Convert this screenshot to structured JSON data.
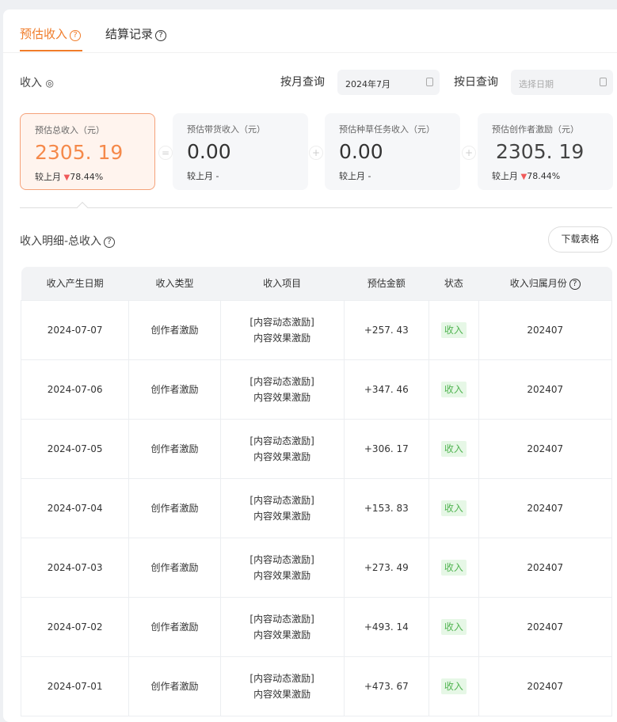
{
  "tabs": [
    {
      "label": "预估收入",
      "active": true
    },
    {
      "label": "结算记录",
      "active": false
    }
  ],
  "accent": "#f07c2a",
  "income": {
    "label": "收入",
    "icon": "eye-icon"
  },
  "filters": {
    "month_label": "按月查询",
    "month_value": "2024年7月",
    "day_label": "按日查询",
    "day_placeholder": "选择日期"
  },
  "stats": [
    {
      "label": "预估总收入（元）",
      "value": "2305. 19",
      "compare_label": "较上月",
      "compare": "78.44%",
      "trend": "down"
    },
    {
      "label": "预估带货收入（元）",
      "value": "0.00",
      "compare_label": "较上月",
      "compare": "-"
    },
    {
      "label": "预估种草任务收入（元）",
      "value": "0.00",
      "compare_label": "较上月",
      "compare": "-"
    },
    {
      "label": "预估创作者激励（元）",
      "value": "2305. 19",
      "compare_label": "较上月",
      "compare": "78.44%",
      "trend": "down"
    }
  ],
  "operators": [
    "=",
    "+",
    "+"
  ],
  "detail": {
    "title": "收入明细-总收入",
    "download": "下载表格"
  },
  "table": {
    "headers": [
      "收入产生日期",
      "收入类型",
      "收入项目",
      "预估金额",
      "状态",
      "收入归属月份"
    ],
    "rows": [
      {
        "date": "2024-07-07",
        "type": "创作者激励",
        "item1": "[内容动态激励]",
        "item2": "内容效果激励",
        "amount": "+257. 43",
        "status": "收入",
        "month": "202407"
      },
      {
        "date": "2024-07-06",
        "type": "创作者激励",
        "item1": "[内容动态激励]",
        "item2": "内容效果激励",
        "amount": "+347. 46",
        "status": "收入",
        "month": "202407"
      },
      {
        "date": "2024-07-05",
        "type": "创作者激励",
        "item1": "[内容动态激励]",
        "item2": "内容效果激励",
        "amount": "+306. 17",
        "status": "收入",
        "month": "202407"
      },
      {
        "date": "2024-07-04",
        "type": "创作者激励",
        "item1": "[内容动态激励]",
        "item2": "内容效果激励",
        "amount": "+153. 83",
        "status": "收入",
        "month": "202407"
      },
      {
        "date": "2024-07-03",
        "type": "创作者激励",
        "item1": "[内容动态激励]",
        "item2": "内容效果激励",
        "amount": "+273. 49",
        "status": "收入",
        "month": "202407"
      },
      {
        "date": "2024-07-02",
        "type": "创作者激励",
        "item1": "[内容动态激励]",
        "item2": "内容效果激励",
        "amount": "+493. 14",
        "status": "收入",
        "month": "202407"
      },
      {
        "date": "2024-07-01",
        "type": "创作者激励",
        "item1": "[内容动态激励]",
        "item2": "内容效果激励",
        "amount": "+473. 67",
        "status": "收入",
        "month": "202407"
      }
    ]
  }
}
